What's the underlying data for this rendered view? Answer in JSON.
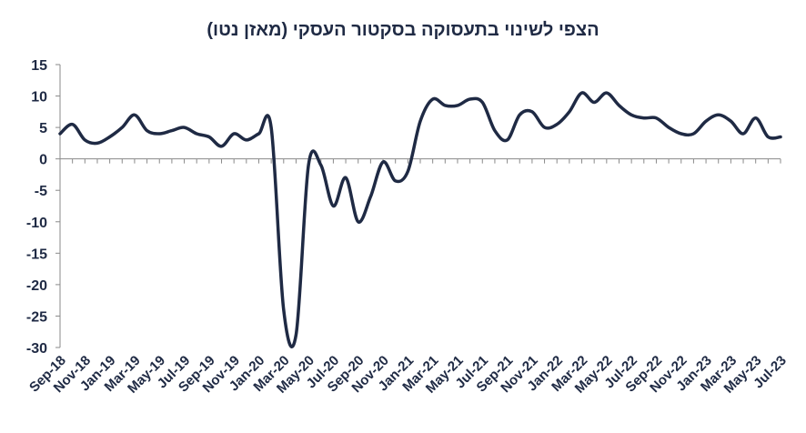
{
  "chart_data": {
    "type": "line",
    "title": "הצפי לשינוי בתעסוקה בסקטור העסקי (מאזן נטו)",
    "xlabel": "",
    "ylabel": "",
    "ylim": [
      -30,
      15
    ],
    "yticks": [
      15,
      10,
      5,
      0,
      -5,
      -10,
      -15,
      -20,
      -25,
      -30
    ],
    "grid": false,
    "legend": "none",
    "line_color": "#1f2a44",
    "tick_labels": [
      "Sep-18",
      "Nov-18",
      "Jan-19",
      "Mar-19",
      "May-19",
      "Jul-19",
      "Sep-19",
      "Nov-19",
      "Jan-20",
      "Mar-20",
      "May-20",
      "Jul-20",
      "Sep-20",
      "Nov-20",
      "Jan-21",
      "Mar-21",
      "May-21",
      "Jul-21",
      "Sep-21",
      "Nov-21",
      "Jan-22",
      "Mar-22",
      "May-22",
      "Jul-22",
      "Sep-22",
      "Nov-22",
      "Jan-23",
      "Mar-23",
      "May-23",
      "Jul-23"
    ],
    "x": [
      "Sep-18",
      "Oct-18",
      "Nov-18",
      "Dec-18",
      "Jan-19",
      "Feb-19",
      "Mar-19",
      "Apr-19",
      "May-19",
      "Jun-19",
      "Jul-19",
      "Aug-19",
      "Sep-19",
      "Oct-19",
      "Nov-19",
      "Dec-19",
      "Jan-20",
      "Feb-20",
      "Mar-20",
      "Apr-20",
      "May-20",
      "Jun-20",
      "Jul-20",
      "Aug-20",
      "Sep-20",
      "Oct-20",
      "Nov-20",
      "Dec-20",
      "Jan-21",
      "Feb-21",
      "Mar-21",
      "Apr-21",
      "May-21",
      "Jun-21",
      "Jul-21",
      "Aug-21",
      "Sep-21",
      "Oct-21",
      "Nov-21",
      "Dec-21",
      "Jan-22",
      "Feb-22",
      "Mar-22",
      "Apr-22",
      "May-22",
      "Jun-22",
      "Jul-22",
      "Aug-22",
      "Sep-22",
      "Oct-22",
      "Nov-22",
      "Dec-22",
      "Jan-23",
      "Feb-23",
      "Mar-23",
      "Apr-23",
      "May-23",
      "Jun-23",
      "Jul-23"
    ],
    "series": [
      {
        "values": [
          4,
          5.5,
          3,
          2.5,
          3.5,
          5,
          7,
          4.5,
          4,
          4.5,
          5,
          4,
          3.5,
          2,
          4,
          3,
          4,
          5,
          -24,
          -28,
          -1,
          -1,
          -7.5,
          -3,
          -10,
          -6,
          -0.5,
          -3.5,
          -2,
          6,
          9.5,
          8.5,
          8.5,
          9.5,
          9,
          4.5,
          3,
          7,
          7.5,
          5,
          5.5,
          7.5,
          10.5,
          9,
          10.5,
          8.5,
          7,
          6.5,
          6.5,
          5,
          4,
          4,
          6,
          7,
          6,
          4,
          6.5,
          3.5,
          3.5
        ]
      }
    ]
  }
}
